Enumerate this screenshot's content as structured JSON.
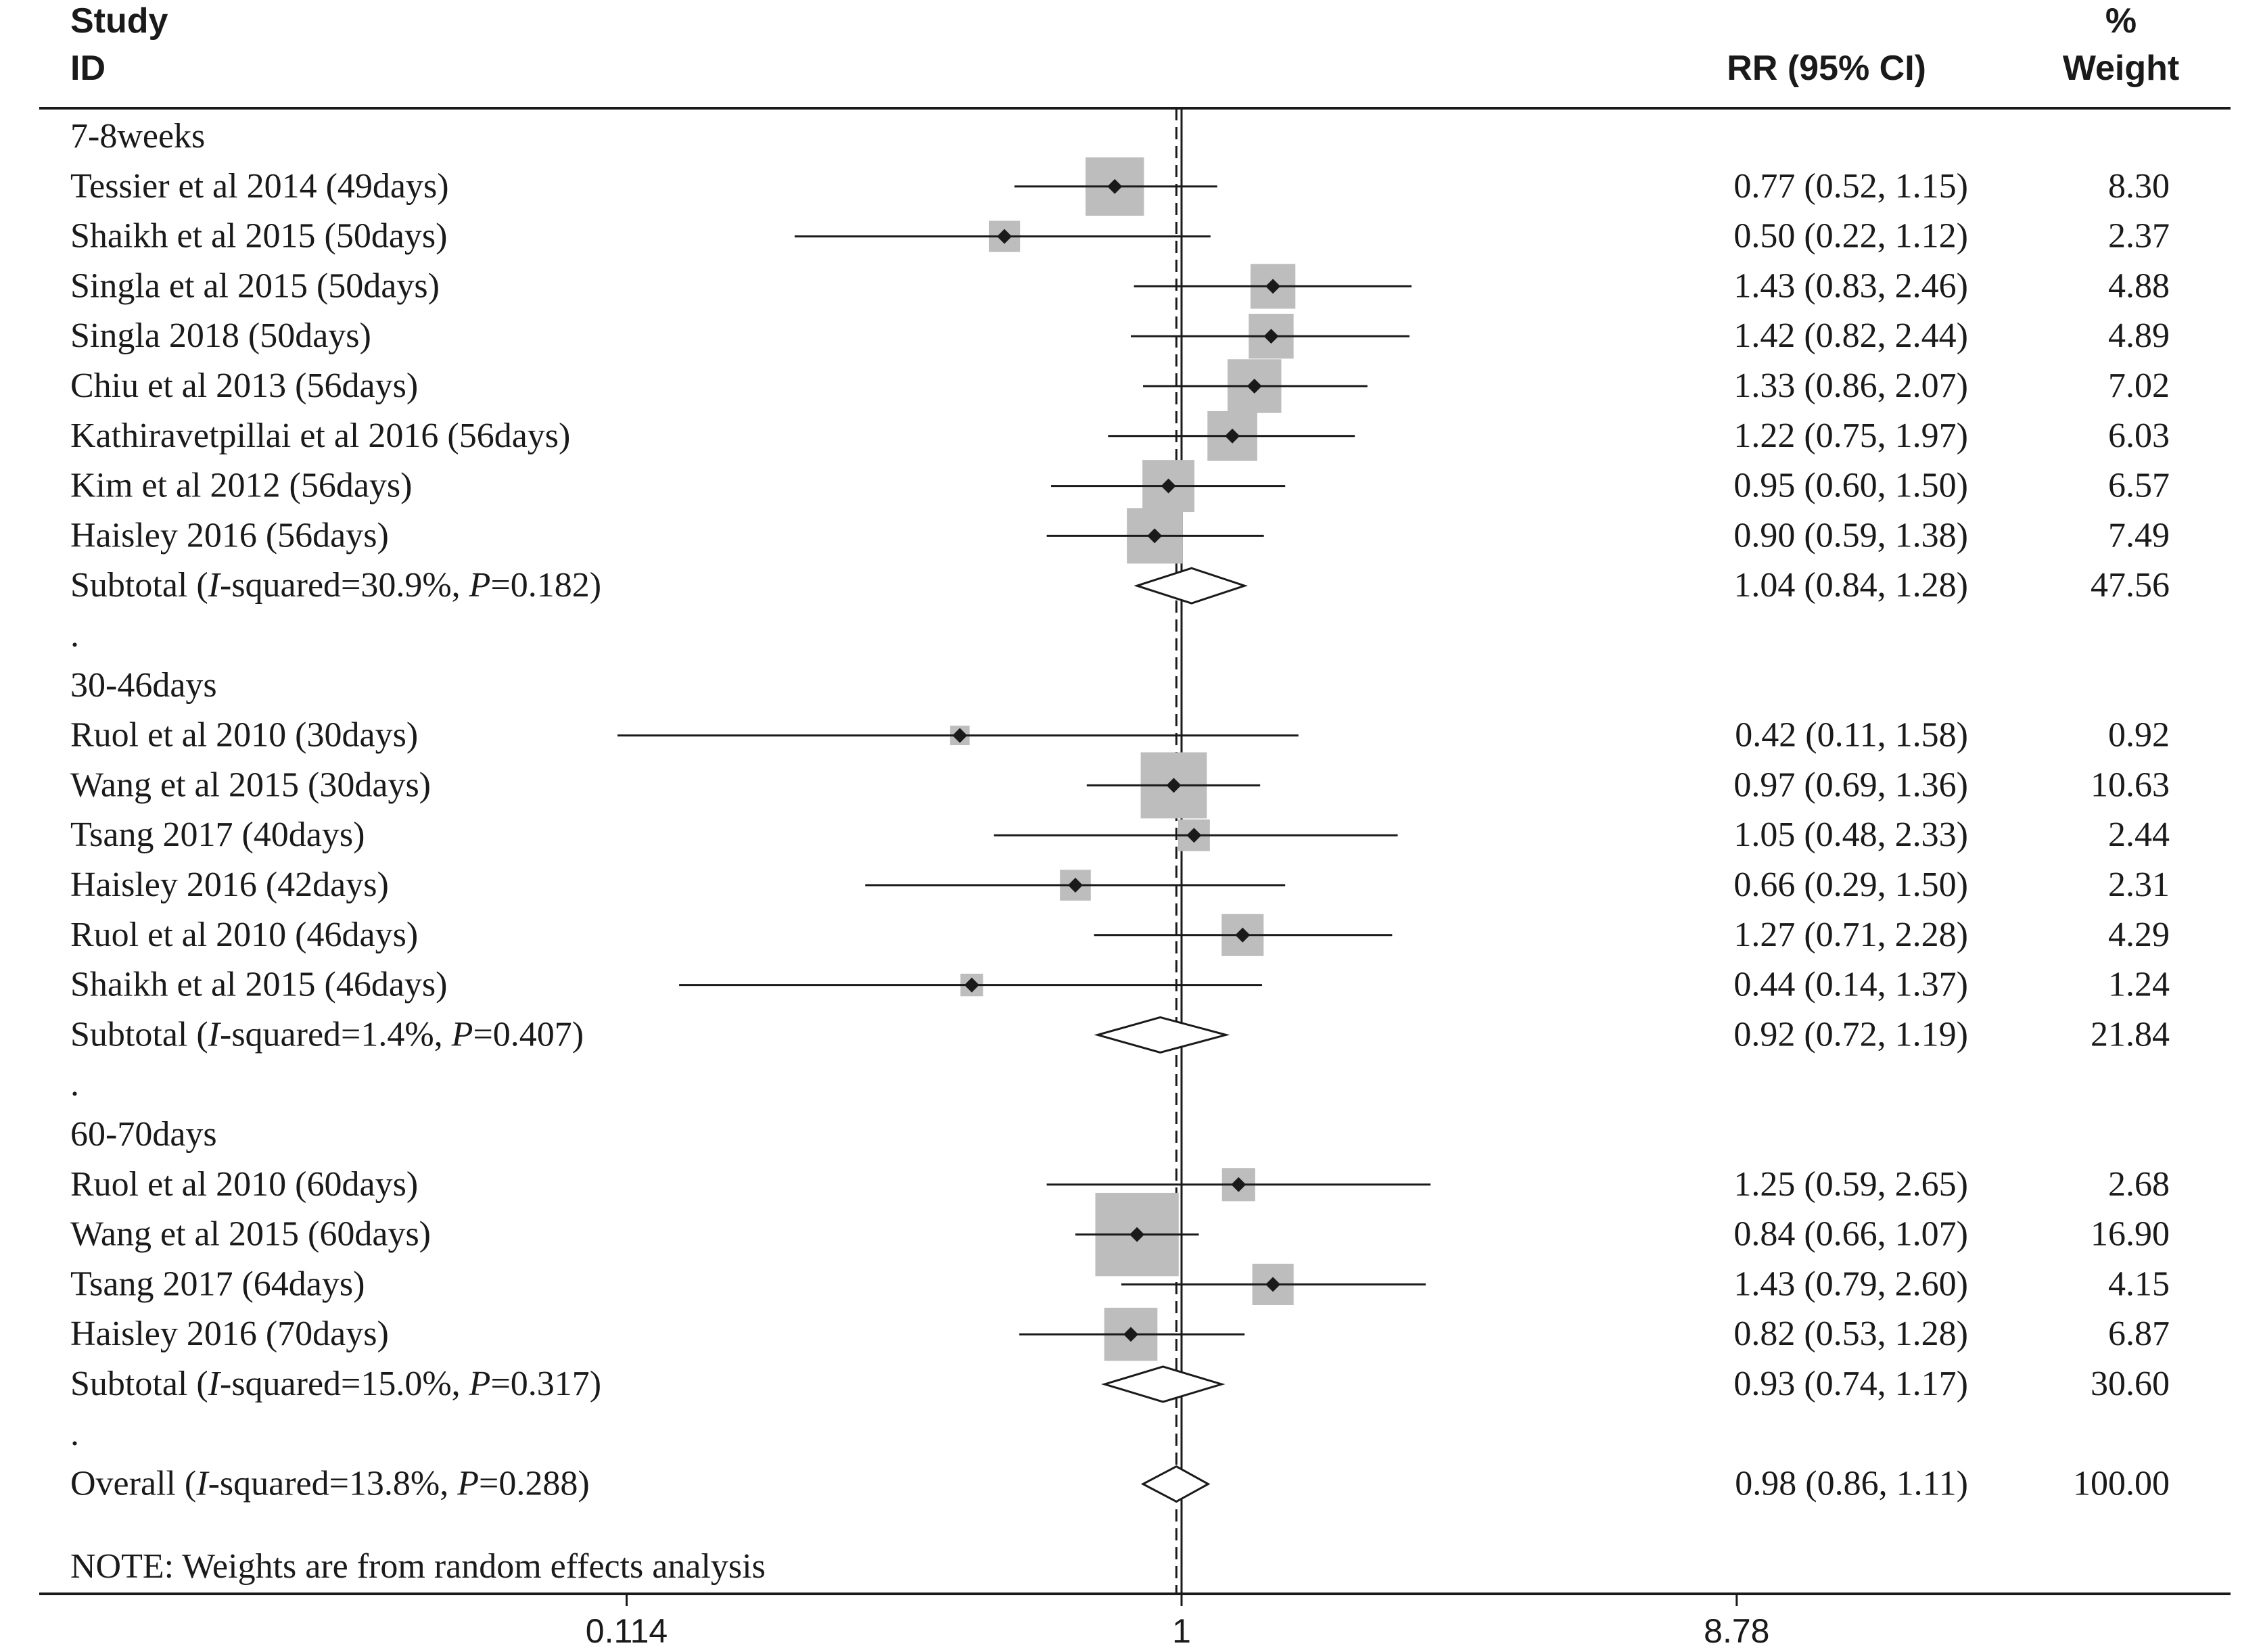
{
  "header": {
    "study_line1": "Study",
    "study_line2": "ID",
    "rr_header": "RR (95% CI)",
    "weight_line1": "%",
    "weight_line2": "Weight"
  },
  "note": "NOTE: Weights are from random effects analysis",
  "chart_data": {
    "type": "forest",
    "x_scale": "log",
    "x_ticks": [
      {
        "value": 0.114,
        "label": "0.114"
      },
      {
        "value": 1,
        "label": "1"
      },
      {
        "value": 8.78,
        "label": "8.78"
      }
    ],
    "null_line": 1,
    "overall_line": 0.98,
    "rows": [
      {
        "kind": "group",
        "label": "7-8weeks"
      },
      {
        "kind": "study",
        "label": "Tessier et al 2014 (49days)",
        "rr": 0.77,
        "lo": 0.52,
        "hi": 1.15,
        "ci_text": "0.77 (0.52, 1.15)",
        "weight": 8.3,
        "weight_text": "8.30"
      },
      {
        "kind": "study",
        "label": "Shaikh et al 2015 (50days)",
        "rr": 0.5,
        "lo": 0.22,
        "hi": 1.12,
        "ci_text": "0.50 (0.22, 1.12)",
        "weight": 2.37,
        "weight_text": "2.37"
      },
      {
        "kind": "study",
        "label": "Singla et al 2015 (50days)",
        "rr": 1.43,
        "lo": 0.83,
        "hi": 2.46,
        "ci_text": "1.43 (0.83, 2.46)",
        "weight": 4.88,
        "weight_text": "4.88"
      },
      {
        "kind": "study",
        "label": "Singla 2018 (50days)",
        "rr": 1.42,
        "lo": 0.82,
        "hi": 2.44,
        "ci_text": "1.42 (0.82, 2.44)",
        "weight": 4.89,
        "weight_text": "4.89"
      },
      {
        "kind": "study",
        "label": "Chiu et al 2013 (56days)",
        "rr": 1.33,
        "lo": 0.86,
        "hi": 2.07,
        "ci_text": "1.33 (0.86, 2.07)",
        "weight": 7.02,
        "weight_text": "7.02"
      },
      {
        "kind": "study",
        "label": "Kathiravetpillai et al 2016 (56days)",
        "rr": 1.22,
        "lo": 0.75,
        "hi": 1.97,
        "ci_text": "1.22 (0.75, 1.97)",
        "weight": 6.03,
        "weight_text": "6.03"
      },
      {
        "kind": "study",
        "label": "Kim et al 2012 (56days)",
        "rr": 0.95,
        "lo": 0.6,
        "hi": 1.5,
        "ci_text": "0.95 (0.60, 1.50)",
        "weight": 6.57,
        "weight_text": "6.57"
      },
      {
        "kind": "study",
        "label": "Haisley 2016 (56days)",
        "rr": 0.9,
        "lo": 0.59,
        "hi": 1.38,
        "ci_text": "0.90 (0.59, 1.38)",
        "weight": 7.49,
        "weight_text": "7.49"
      },
      {
        "kind": "subtotal",
        "label_prefix": "Subtotal  (",
        "i2_symbol": "I",
        "i2_text": "-squared=30.9%, ",
        "p_symbol": "P",
        "p_text": "=0.182)",
        "rr": 1.04,
        "lo": 0.84,
        "hi": 1.28,
        "ci_text": "1.04 (0.84, 1.28)",
        "weight": 47.56,
        "weight_text": "47.56"
      },
      {
        "kind": "dot",
        "label": "."
      },
      {
        "kind": "group",
        "label": "30-46days"
      },
      {
        "kind": "study",
        "label": "Ruol et al 2010 (30days)",
        "rr": 0.42,
        "lo": 0.11,
        "hi": 1.58,
        "ci_text": "0.42 (0.11, 1.58)",
        "weight": 0.92,
        "weight_text": "0.92"
      },
      {
        "kind": "study",
        "label": "Wang et al 2015 (30days)",
        "rr": 0.97,
        "lo": 0.69,
        "hi": 1.36,
        "ci_text": "0.97 (0.69, 1.36)",
        "weight": 10.63,
        "weight_text": "10.63"
      },
      {
        "kind": "study",
        "label": "Tsang 2017 (40days)",
        "rr": 1.05,
        "lo": 0.48,
        "hi": 2.33,
        "ci_text": "1.05 (0.48, 2.33)",
        "weight": 2.44,
        "weight_text": "2.44"
      },
      {
        "kind": "study",
        "label": "Haisley 2016 (42days)",
        "rr": 0.66,
        "lo": 0.29,
        "hi": 1.5,
        "ci_text": "0.66 (0.29, 1.50)",
        "weight": 2.31,
        "weight_text": "2.31"
      },
      {
        "kind": "study",
        "label": "Ruol et al 2010 (46days)",
        "rr": 1.27,
        "lo": 0.71,
        "hi": 2.28,
        "ci_text": "1.27 (0.71, 2.28)",
        "weight": 4.29,
        "weight_text": "4.29"
      },
      {
        "kind": "study",
        "label": "Shaikh et al 2015 (46days)",
        "rr": 0.44,
        "lo": 0.14,
        "hi": 1.37,
        "ci_text": "0.44 (0.14, 1.37)",
        "weight": 1.24,
        "weight_text": "1.24"
      },
      {
        "kind": "subtotal",
        "label_prefix": "Subtotal  (",
        "i2_symbol": "I",
        "i2_text": "-squared=1.4%, ",
        "p_symbol": "P",
        "p_text": "=0.407)",
        "rr": 0.92,
        "lo": 0.72,
        "hi": 1.19,
        "ci_text": "0.92 (0.72, 1.19)",
        "weight": 21.84,
        "weight_text": "21.84"
      },
      {
        "kind": "dot",
        "label": "."
      },
      {
        "kind": "group",
        "label": "60-70days"
      },
      {
        "kind": "study",
        "label": "Ruol et al 2010 (60days)",
        "rr": 1.25,
        "lo": 0.59,
        "hi": 2.65,
        "ci_text": "1.25 (0.59, 2.65)",
        "weight": 2.68,
        "weight_text": "2.68"
      },
      {
        "kind": "study",
        "label": "Wang et al 2015 (60days)",
        "rr": 0.84,
        "lo": 0.66,
        "hi": 1.07,
        "ci_text": "0.84 (0.66, 1.07)",
        "weight": 16.9,
        "weight_text": "16.90"
      },
      {
        "kind": "study",
        "label": "Tsang 2017 (64days)",
        "rr": 1.43,
        "lo": 0.79,
        "hi": 2.6,
        "ci_text": "1.43 (0.79, 2.60)",
        "weight": 4.15,
        "weight_text": "4.15"
      },
      {
        "kind": "study",
        "label": "Haisley 2016 (70days)",
        "rr": 0.82,
        "lo": 0.53,
        "hi": 1.28,
        "ci_text": "0.82 (0.53, 1.28)",
        "weight": 6.87,
        "weight_text": "6.87"
      },
      {
        "kind": "subtotal",
        "label_prefix": "Subtotal  (",
        "i2_symbol": "I",
        "i2_text": "-squared=15.0%, ",
        "p_symbol": "P",
        "p_text": "=0.317)",
        "rr": 0.93,
        "lo": 0.74,
        "hi": 1.17,
        "ci_text": "0.93 (0.74, 1.17)",
        "weight": 30.6,
        "weight_text": "30.60"
      },
      {
        "kind": "dot",
        "label": "."
      },
      {
        "kind": "overall",
        "label_prefix": "Overall  (",
        "i2_symbol": "I",
        "i2_text": "-squared=13.8%, ",
        "p_symbol": "P",
        "p_text": "=0.288)",
        "rr": 0.98,
        "lo": 0.86,
        "hi": 1.11,
        "ci_text": "0.98 (0.86, 1.11)",
        "weight": 100.0,
        "weight_text": "100.00"
      }
    ]
  }
}
